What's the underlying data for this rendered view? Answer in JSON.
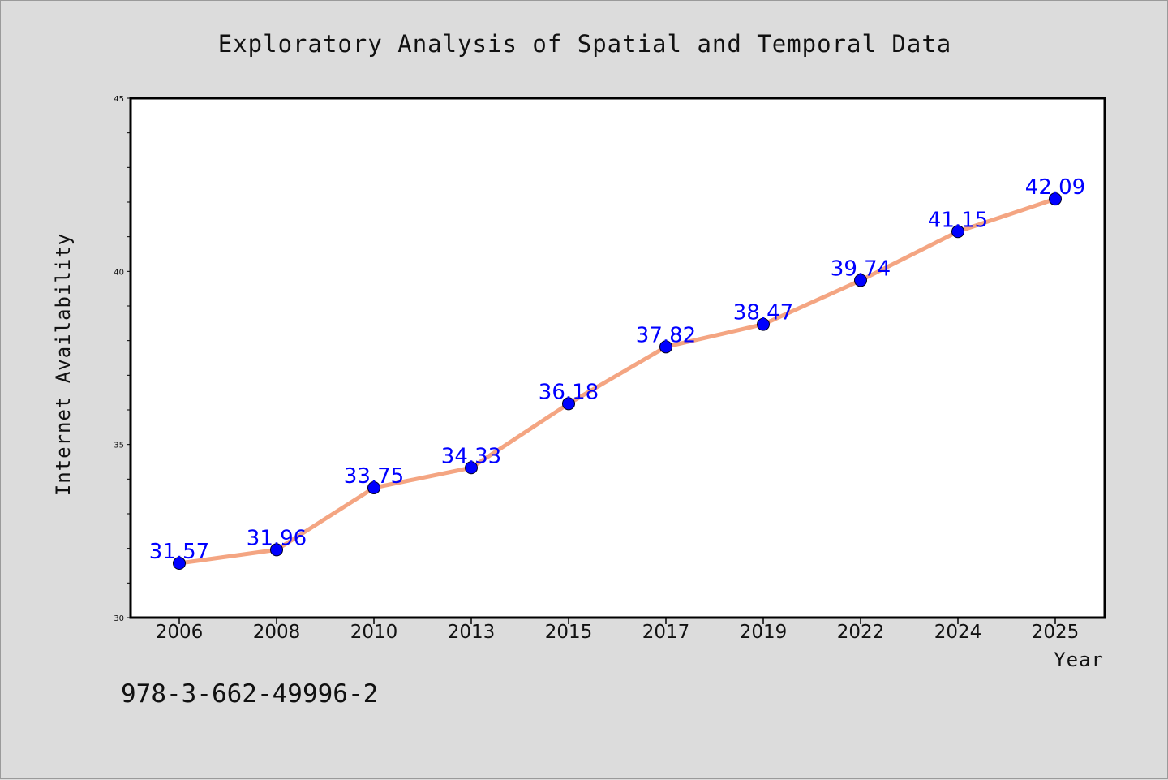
{
  "chart_data": {
    "type": "line",
    "title": "Exploratory Analysis of Spatial and Temporal Data",
    "xlabel": "Year",
    "ylabel": "Internet Availability",
    "categories": [
      "2006",
      "2008",
      "2010",
      "2013",
      "2015",
      "2017",
      "2019",
      "2022",
      "2024",
      "2025"
    ],
    "values": [
      31.57,
      31.96,
      33.75,
      34.33,
      36.18,
      37.82,
      38.47,
      39.74,
      41.15,
      42.09
    ],
    "data_labels": [
      "31.57",
      "31.96",
      "33.75",
      "34.33",
      "36.18",
      "37.82",
      "38.47",
      "39.74",
      "41.15",
      "42.09"
    ],
    "ylim": [
      30,
      45
    ],
    "yticks": [
      "30",
      "35",
      "40",
      "45"
    ],
    "grid": false,
    "legend": "none",
    "line_color": "#f4a582",
    "marker_color": "#0000ff",
    "label_color": "#0000ff"
  },
  "footer_code": "978-3-662-49996-2"
}
